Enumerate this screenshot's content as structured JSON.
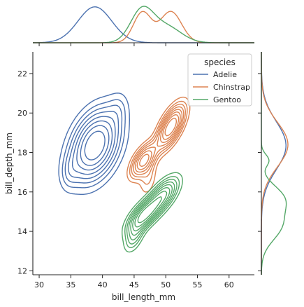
{
  "chart_data": {
    "type": "kde_joint",
    "xlabel": "bill_length_mm",
    "ylabel": "bill_depth_mm",
    "xlim": [
      29,
      64
    ],
    "ylim": [
      11.8,
      23.1
    ],
    "xticks": [
      30,
      35,
      40,
      45,
      50,
      55,
      60
    ],
    "yticks": [
      12,
      14,
      16,
      18,
      20,
      22
    ],
    "grid": false,
    "legend": {
      "title": "species",
      "placement": "top-right"
    },
    "contour_levels": [
      0.1,
      0.18,
      0.26,
      0.35,
      0.45,
      0.56,
      0.68,
      0.82
    ],
    "series": [
      {
        "name": "Adelie",
        "color": "#4c72b0",
        "kde2d_components": [
          {
            "center": [
              38.8,
              18.35
            ],
            "sd": [
              2.5,
              1.15
            ],
            "rho": 0.35,
            "weight": 1.0
          },
          {
            "center": [
              34.8,
              17.0
            ],
            "sd": [
              1.0,
              0.6
            ],
            "rho": 0.2,
            "weight": 0.14
          },
          {
            "center": [
              42.5,
              20.2
            ],
            "sd": [
              1.1,
              0.6
            ],
            "rho": 0.2,
            "weight": 0.12
          }
        ],
        "marginal_x": [
          {
            "mean": 38.8,
            "sd": 2.66,
            "weight": 1.0
          }
        ],
        "marginal_y": [
          {
            "mean": 18.35,
            "sd": 1.22,
            "weight": 1.0
          }
        ]
      },
      {
        "name": "Chinstrap",
        "color": "#dd8452",
        "kde2d_components": [
          {
            "center": [
              46.5,
              17.6
            ],
            "sd": [
              1.3,
              0.55
            ],
            "rho": 0.6,
            "weight": 0.75
          },
          {
            "center": [
              50.8,
              19.3
            ],
            "sd": [
              1.4,
              0.7
            ],
            "rho": 0.65,
            "weight": 1.0
          },
          {
            "center": [
              47.2,
              16.7
            ],
            "sd": [
              0.9,
              0.6
            ],
            "rho": 0.3,
            "weight": 0.2
          }
        ],
        "marginal_x": [
          {
            "mean": 46.3,
            "sd": 1.4,
            "weight": 0.8
          },
          {
            "mean": 50.8,
            "sd": 1.7,
            "weight": 1.0
          }
        ],
        "marginal_y": [
          {
            "mean": 18.4,
            "sd": 1.13,
            "weight": 1.0
          }
        ]
      },
      {
        "name": "Gentoo",
        "color": "#55a868",
        "kde2d_components": [
          {
            "center": [
              46.5,
              14.8
            ],
            "sd": [
              1.6,
              0.55
            ],
            "rho": 0.65,
            "weight": 1.0
          },
          {
            "center": [
              49.5,
              15.8
            ],
            "sd": [
              1.6,
              0.6
            ],
            "rho": 0.65,
            "weight": 0.8
          },
          {
            "center": [
              45.0,
              13.7
            ],
            "sd": [
              1.0,
              0.5
            ],
            "rho": 0.5,
            "weight": 0.35
          },
          {
            "center": [
              55.5,
              16.4
            ],
            "sd": [
              0.4,
              0.3
            ],
            "rho": 0.3,
            "weight": 0.05
          },
          {
            "center": [
              59.6,
              16.9
            ],
            "sd": [
              0.4,
              0.3
            ],
            "rho": 0.3,
            "weight": 0.05
          }
        ],
        "marginal_x": [
          {
            "mean": 46.2,
            "sd": 1.8,
            "weight": 1.0
          },
          {
            "mean": 50.0,
            "sd": 2.4,
            "weight": 0.7
          }
        ],
        "marginal_y": [
          {
            "mean": 14.3,
            "sd": 0.75,
            "weight": 1.0
          },
          {
            "mean": 15.7,
            "sd": 0.65,
            "weight": 0.9
          },
          {
            "mean": 17.6,
            "sd": 0.3,
            "weight": 0.15
          }
        ]
      }
    ]
  }
}
